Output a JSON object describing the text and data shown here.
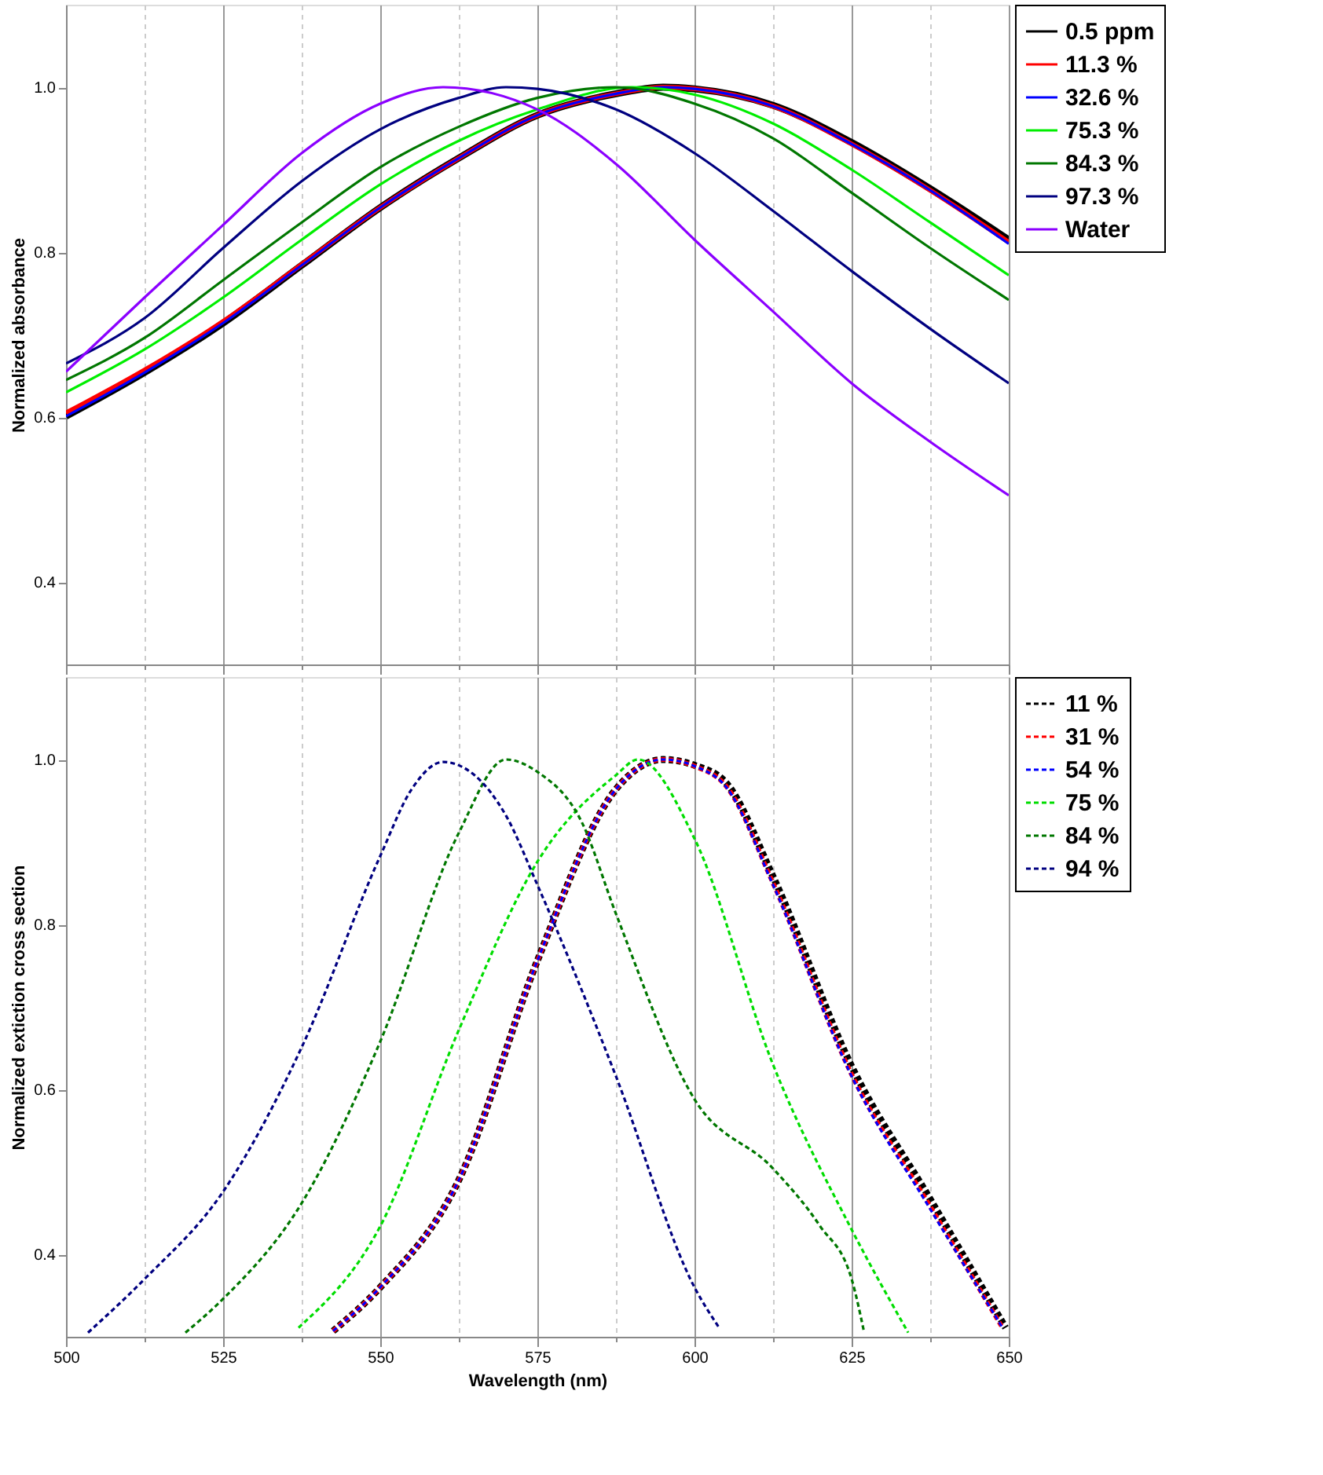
{
  "chart_data": [
    {
      "type": "line",
      "ylabel": "Normalized absorbance",
      "xlim": [
        500,
        650
      ],
      "ylim": [
        0.3,
        1.1
      ],
      "xticks": [
        500,
        {
          "value": 512.5,
          "label": null
        },
        525,
        {
          "value": 537.5,
          "label": null
        },
        550,
        {
          "value": 562.5,
          "label": null
        },
        575,
        {
          "value": 587.5,
          "label": null
        },
        600,
        {
          "value": 612.5,
          "label": null
        },
        625,
        {
          "value": 637.5,
          "label": null
        },
        650
      ],
      "yticks": [
        0.4,
        0.6,
        0.8,
        {
          "value": 1.0,
          "label": "1.0"
        }
      ],
      "tick_labels": "y",
      "grid": "x",
      "legend": "top right",
      "line_style": "solid",
      "series": [
        {
          "name": "0.5 ppm",
          "color": "#000000",
          "x": [
            500,
            512.5,
            525,
            537.5,
            550,
            562.5,
            575,
            587.5,
            595,
            600,
            612.5,
            625,
            637.5,
            650
          ],
          "values": [
            0.601,
            0.654,
            0.714,
            0.784,
            0.854,
            0.914,
            0.966,
            0.992,
            1.0,
            0.998,
            0.978,
            0.933,
            0.877,
            0.815
          ]
        },
        {
          "name": "11.3 %",
          "color": "#ff0000",
          "x": [
            500,
            512.5,
            525,
            537.5,
            550,
            562.5,
            575,
            587.5,
            595,
            600,
            612.5,
            625,
            637.5,
            650
          ],
          "values": [
            0.605,
            0.657,
            0.716,
            0.785,
            0.854,
            0.914,
            0.966,
            0.992,
            1.0,
            0.998,
            0.977,
            0.931,
            0.875,
            0.812
          ]
        },
        {
          "name": "32.6 %",
          "color": "#0000ff",
          "x": [
            500,
            512.5,
            525,
            537.5,
            550,
            562.5,
            575,
            587.5,
            595,
            600,
            612.5,
            625,
            637.5,
            650
          ],
          "values": [
            0.601,
            0.654,
            0.714,
            0.784,
            0.854,
            0.914,
            0.966,
            0.992,
            1.0,
            0.998,
            0.977,
            0.931,
            0.875,
            0.81
          ]
        },
        {
          "name": "75.3 %",
          "color": "#00ee00",
          "x": [
            500,
            512.5,
            525,
            537.5,
            550,
            562.5,
            575,
            590,
            600,
            612.5,
            625,
            637.5,
            650
          ],
          "values": [
            0.63,
            0.682,
            0.745,
            0.815,
            0.882,
            0.935,
            0.973,
            1.0,
            0.991,
            0.956,
            0.9,
            0.836,
            0.772
          ]
        },
        {
          "name": "84.3 %",
          "color": "#007700",
          "x": [
            500,
            512.5,
            525,
            537.5,
            550,
            562.5,
            575,
            587.5,
            600,
            612.5,
            625,
            637.5,
            650
          ],
          "values": [
            0.645,
            0.696,
            0.766,
            0.836,
            0.903,
            0.952,
            0.987,
            1.0,
            0.98,
            0.938,
            0.872,
            0.805,
            0.742
          ]
        },
        {
          "name": "97.3 %",
          "color": "#000080",
          "x": [
            500,
            512.5,
            525,
            537.5,
            550,
            562.5,
            570,
            575,
            587.5,
            600,
            612.5,
            625,
            637.5,
            650
          ],
          "values": [
            0.665,
            0.72,
            0.805,
            0.886,
            0.949,
            0.987,
            1.0,
            0.998,
            0.973,
            0.92,
            0.85,
            0.777,
            0.707,
            0.641
          ]
        },
        {
          "name": "Water",
          "color": "#8b00ff",
          "x": [
            500,
            512.5,
            525,
            537.5,
            550,
            560,
            575,
            587.5,
            600,
            612.5,
            625,
            637.5,
            650
          ],
          "values": [
            0.655,
            0.745,
            0.833,
            0.92,
            0.98,
            1.0,
            0.973,
            0.907,
            0.815,
            0.728,
            0.641,
            0.57,
            0.505
          ]
        }
      ]
    },
    {
      "type": "line",
      "xlabel": "Wavelength (nm)",
      "ylabel": "Normalized extiction cross section",
      "xlim": [
        500,
        650
      ],
      "ylim": [
        0.3,
        1.1
      ],
      "xticks": [
        500,
        {
          "value": 512.5,
          "label": null
        },
        525,
        {
          "value": 537.5,
          "label": null
        },
        550,
        {
          "value": 562.5,
          "label": null
        },
        575,
        {
          "value": 587.5,
          "label": null
        },
        600,
        {
          "value": 612.5,
          "label": null
        },
        625,
        {
          "value": 637.5,
          "label": null
        },
        650
      ],
      "yticks": [
        0.4,
        0.6,
        0.8,
        {
          "value": 1.0,
          "label": "1.0"
        }
      ],
      "grid": "x",
      "legend": "top right",
      "line_style": "dashed",
      "series": [
        {
          "name": "11 %",
          "color": "#000000",
          "x": [
            542.5,
            550,
            562.5,
            575,
            587.5,
            595,
            600,
            605,
            612.5,
            625,
            637.5,
            649.5
          ],
          "values": [
            0.307,
            0.36,
            0.49,
            0.756,
            0.964,
            1.0,
            0.993,
            0.972,
            0.858,
            0.628,
            0.467,
            0.311
          ]
        },
        {
          "name": "31 %",
          "color": "#ff0000",
          "x": [
            542.5,
            550,
            562.5,
            575,
            587.5,
            595,
            600,
            605,
            612.5,
            625,
            637.5,
            649
          ],
          "values": [
            0.307,
            0.36,
            0.49,
            0.756,
            0.964,
            1.0,
            0.992,
            0.968,
            0.85,
            0.618,
            0.458,
            0.311
          ]
        },
        {
          "name": "54 %",
          "color": "#0000ff",
          "x": [
            542.5,
            550,
            562.5,
            575,
            587.5,
            595,
            600,
            605,
            612.5,
            625,
            637.5,
            649
          ],
          "values": [
            0.307,
            0.36,
            0.49,
            0.756,
            0.964,
            1.0,
            0.992,
            0.967,
            0.848,
            0.616,
            0.455,
            0.311
          ]
        },
        {
          "name": "75 %",
          "color": "#00dd00",
          "x": [
            537,
            550,
            562.5,
            575,
            587.5,
            591,
            600,
            612.5,
            625,
            634
          ],
          "values": [
            0.311,
            0.434,
            0.672,
            0.876,
            0.981,
            1.0,
            0.904,
            0.63,
            0.43,
            0.305
          ]
        },
        {
          "name": "84 %",
          "color": "#007700",
          "x": [
            519,
            525,
            537.5,
            550,
            562.5,
            570,
            575,
            582,
            587.5,
            600,
            612.5,
            620,
            625,
            627
          ],
          "values": [
            0.305,
            0.346,
            0.462,
            0.658,
            0.911,
            1.0,
            0.985,
            0.925,
            0.813,
            0.588,
            0.504,
            0.434,
            0.37,
            0.305
          ]
        },
        {
          "name": "94 %",
          "color": "#000080",
          "x": [
            503.5,
            512.5,
            525,
            537.5,
            550,
            555,
            560,
            565,
            570,
            575,
            587.5,
            600,
            604
          ],
          "values": [
            0.305,
            0.37,
            0.476,
            0.651,
            0.883,
            0.964,
            0.997,
            0.981,
            0.932,
            0.848,
            0.616,
            0.36,
            0.31
          ]
        }
      ]
    }
  ]
}
